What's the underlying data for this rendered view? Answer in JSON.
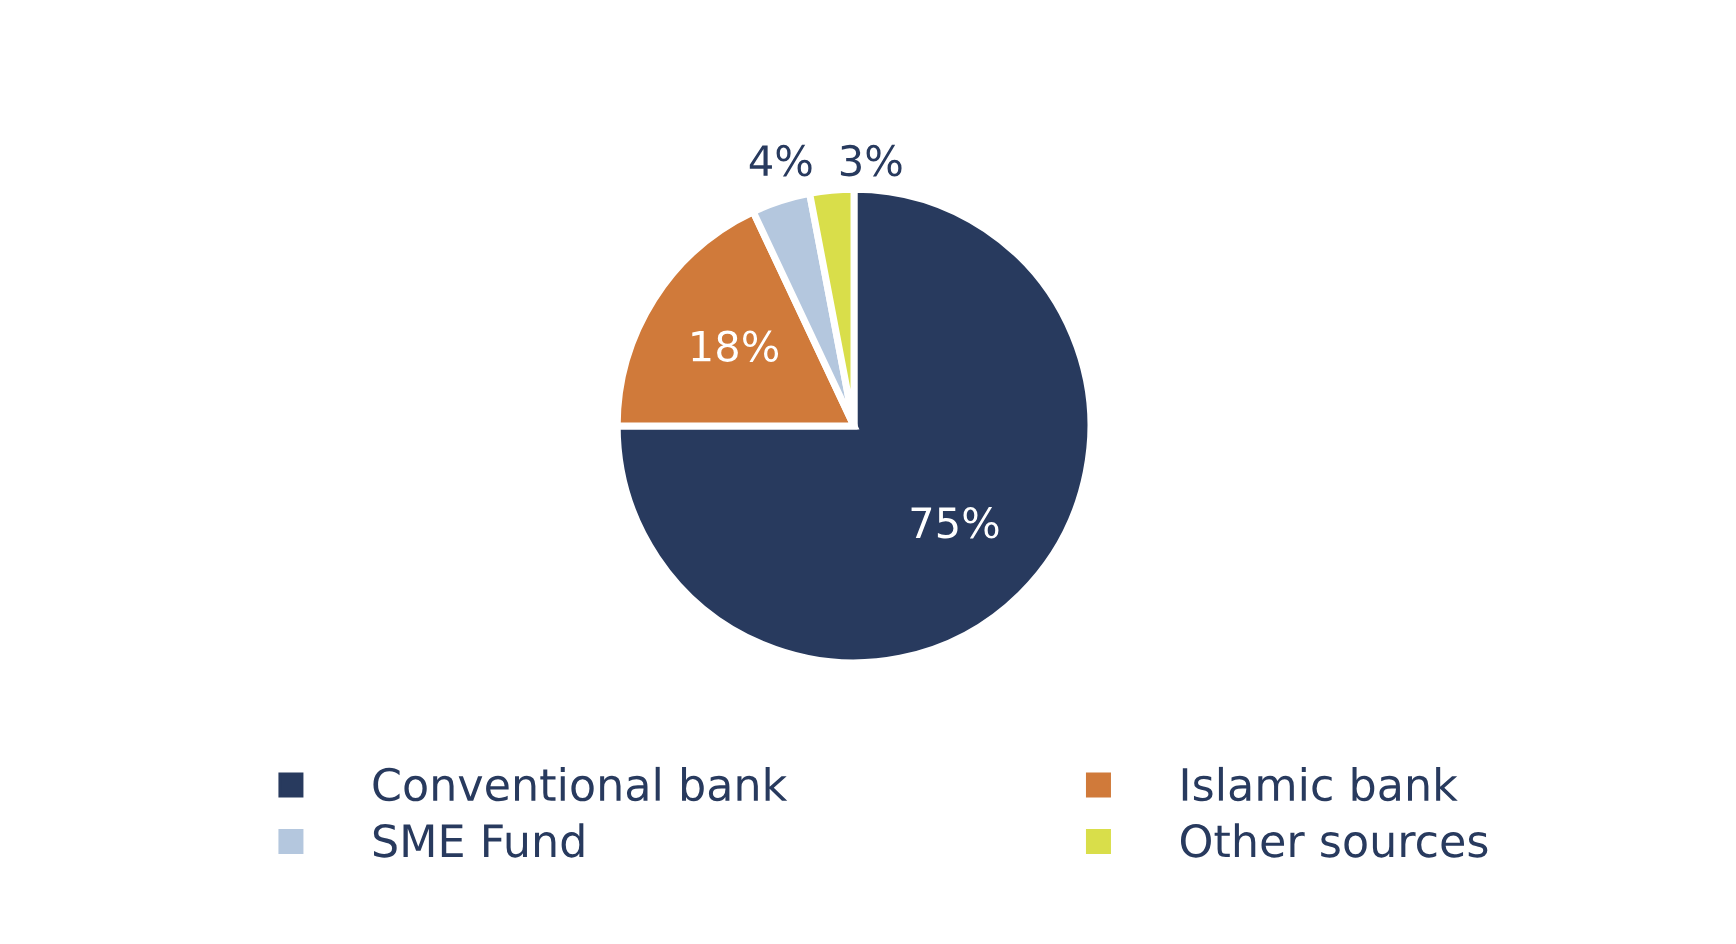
{
  "chart_data": {
    "type": "pie",
    "categories": [
      "Conventional bank",
      "Islamic bank",
      "SME Fund",
      "Other sources"
    ],
    "values": [
      75,
      18,
      4,
      3
    ],
    "value_labels": [
      "75%",
      "18%",
      "4%",
      "3%"
    ],
    "colors": [
      "#283a5e",
      "#d07a3a",
      "#b4c7de",
      "#d9de4a"
    ],
    "legend": "bottom"
  }
}
